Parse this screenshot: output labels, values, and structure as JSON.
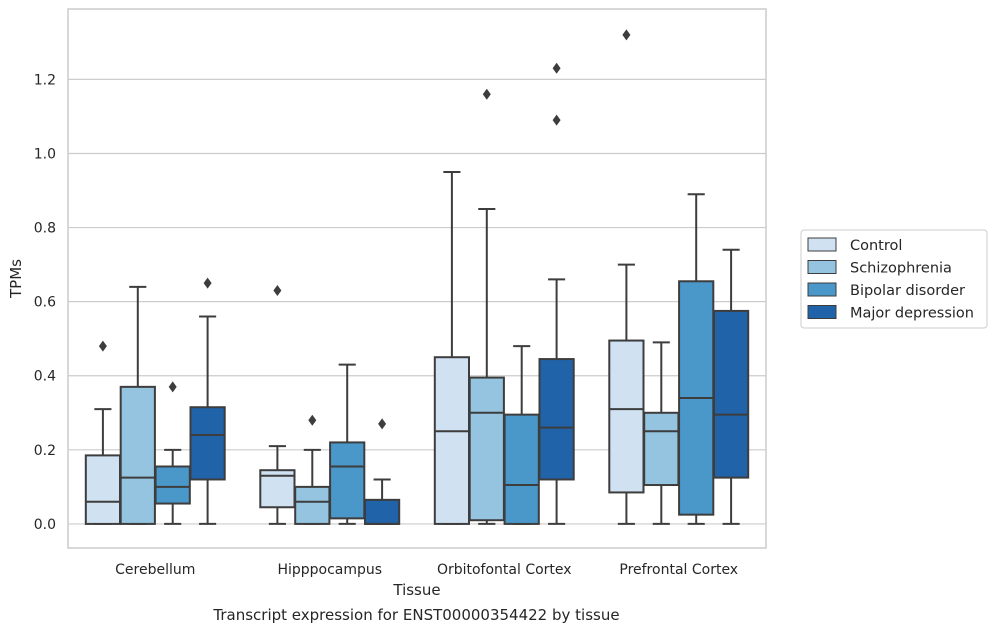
{
  "caption": "Transcript expression for ENST00000354422 by tissue",
  "chart_data": {
    "type": "boxplot",
    "xlabel": "Tissue",
    "ylabel": "TPMs",
    "ylim": [
      -0.065,
      1.39
    ],
    "yticks": [
      0.0,
      0.2,
      0.4,
      0.6,
      0.8,
      1.0,
      1.2
    ],
    "ytick_labels": [
      "0.0",
      "0.2",
      "0.4",
      "0.6",
      "0.8",
      "1.0",
      "1.2"
    ],
    "grid": true,
    "legend_position": "right",
    "categories": [
      "Cerebellum",
      "Hipppocampus",
      "Orbitofontal Cortex",
      "Prefrontal Cortex"
    ],
    "series": [
      {
        "name": "Control",
        "color": "#d0e1f2",
        "boxes": [
          {
            "whislo": 0.0,
            "q1": 0.0,
            "med": 0.06,
            "q3": 0.185,
            "whishi": 0.31,
            "fliers": [
              0.48
            ]
          },
          {
            "whislo": 0.0,
            "q1": 0.045,
            "med": 0.13,
            "q3": 0.145,
            "whishi": 0.21,
            "fliers": [
              0.63
            ]
          },
          {
            "whislo": 0.0,
            "q1": 0.0,
            "med": 0.25,
            "q3": 0.45,
            "whishi": 0.95,
            "fliers": []
          },
          {
            "whislo": 0.0,
            "q1": 0.085,
            "med": 0.31,
            "q3": 0.495,
            "whishi": 0.7,
            "fliers": [
              1.32
            ]
          }
        ]
      },
      {
        "name": "Schizophrenia",
        "color": "#94c4df",
        "boxes": [
          {
            "whislo": 0.0,
            "q1": 0.0,
            "med": 0.125,
            "q3": 0.37,
            "whishi": 0.64,
            "fliers": []
          },
          {
            "whislo": 0.0,
            "q1": 0.0,
            "med": 0.06,
            "q3": 0.1,
            "whishi": 0.2,
            "fliers": [
              0.28
            ]
          },
          {
            "whislo": 0.0,
            "q1": 0.01,
            "med": 0.3,
            "q3": 0.395,
            "whishi": 0.85,
            "fliers": [
              1.16
            ]
          },
          {
            "whislo": 0.0,
            "q1": 0.105,
            "med": 0.25,
            "q3": 0.3,
            "whishi": 0.49,
            "fliers": []
          }
        ]
      },
      {
        "name": "Bipolar disorder",
        "color": "#4a98c9",
        "boxes": [
          {
            "whislo": 0.0,
            "q1": 0.055,
            "med": 0.1,
            "q3": 0.155,
            "whishi": 0.2,
            "fliers": [
              0.37
            ]
          },
          {
            "whislo": 0.0,
            "q1": 0.015,
            "med": 0.155,
            "q3": 0.22,
            "whishi": 0.43,
            "fliers": []
          },
          {
            "whislo": 0.0,
            "q1": 0.0,
            "med": 0.105,
            "q3": 0.295,
            "whishi": 0.48,
            "fliers": []
          },
          {
            "whislo": 0.0,
            "q1": 0.025,
            "med": 0.34,
            "q3": 0.655,
            "whishi": 0.89,
            "fliers": []
          }
        ]
      },
      {
        "name": "Major depression",
        "color": "#2063a9",
        "boxes": [
          {
            "whislo": 0.0,
            "q1": 0.12,
            "med": 0.24,
            "q3": 0.315,
            "whishi": 0.56,
            "fliers": [
              0.65
            ]
          },
          {
            "whislo": 0.0,
            "q1": 0.0,
            "med": 0.0,
            "q3": 0.065,
            "whishi": 0.12,
            "fliers": [
              0.27
            ]
          },
          {
            "whislo": 0.0,
            "q1": 0.12,
            "med": 0.26,
            "q3": 0.445,
            "whishi": 0.66,
            "fliers": [
              1.09,
              1.23
            ]
          },
          {
            "whislo": 0.0,
            "q1": 0.125,
            "med": 0.295,
            "q3": 0.575,
            "whishi": 0.74,
            "fliers": []
          }
        ]
      }
    ]
  }
}
